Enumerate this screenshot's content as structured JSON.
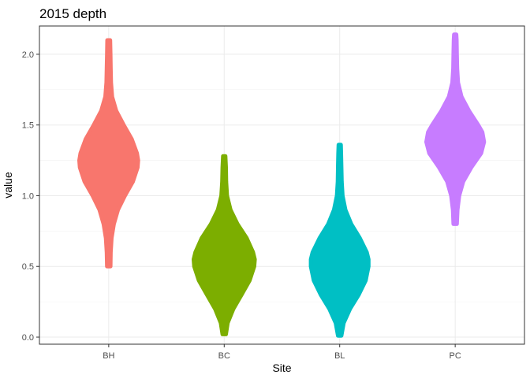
{
  "chart_data": {
    "type": "violin",
    "title": "2015 depth",
    "xlabel": "Site",
    "ylabel": "value",
    "categories": [
      "BH",
      "BC",
      "BL",
      "PC"
    ],
    "ylim": [
      -0.05,
      2.2
    ],
    "y_ticks": [
      0.0,
      0.5,
      1.0,
      1.5,
      2.0
    ],
    "y_tick_labels": [
      "0.0",
      "0.5",
      "1.0",
      "1.5",
      "2.0"
    ],
    "grid": true,
    "legend": "none",
    "series": [
      {
        "category": "BH",
        "color": "#F8766D",
        "min": 0.5,
        "max": 2.1,
        "profile": [
          [
            0.5,
            0.03
          ],
          [
            0.6,
            0.035
          ],
          [
            0.7,
            0.05
          ],
          [
            0.8,
            0.09
          ],
          [
            0.9,
            0.16
          ],
          [
            1.0,
            0.28
          ],
          [
            1.1,
            0.42
          ],
          [
            1.2,
            0.5
          ],
          [
            1.25,
            0.51
          ],
          [
            1.3,
            0.49
          ],
          [
            1.4,
            0.4
          ],
          [
            1.5,
            0.26
          ],
          [
            1.6,
            0.13
          ],
          [
            1.7,
            0.06
          ],
          [
            1.8,
            0.04
          ],
          [
            1.9,
            0.035
          ],
          [
            2.0,
            0.03
          ],
          [
            2.1,
            0.025
          ]
        ]
      },
      {
        "category": "BC",
        "color": "#7CAE00",
        "min": 0.02,
        "max": 1.28,
        "profile": [
          [
            0.02,
            0.03
          ],
          [
            0.1,
            0.06
          ],
          [
            0.2,
            0.16
          ],
          [
            0.3,
            0.3
          ],
          [
            0.4,
            0.44
          ],
          [
            0.5,
            0.52
          ],
          [
            0.55,
            0.53
          ],
          [
            0.6,
            0.5
          ],
          [
            0.7,
            0.39
          ],
          [
            0.8,
            0.23
          ],
          [
            0.9,
            0.11
          ],
          [
            1.0,
            0.05
          ],
          [
            1.1,
            0.035
          ],
          [
            1.2,
            0.03
          ],
          [
            1.28,
            0.02
          ]
        ]
      },
      {
        "category": "BL",
        "color": "#00BFC4",
        "min": 0.01,
        "max": 1.36,
        "profile": [
          [
            0.01,
            0.03
          ],
          [
            0.1,
            0.07
          ],
          [
            0.2,
            0.18
          ],
          [
            0.3,
            0.33
          ],
          [
            0.4,
            0.45
          ],
          [
            0.5,
            0.5
          ],
          [
            0.55,
            0.5
          ],
          [
            0.6,
            0.47
          ],
          [
            0.7,
            0.35
          ],
          [
            0.8,
            0.2
          ],
          [
            0.9,
            0.1
          ],
          [
            1.0,
            0.05
          ],
          [
            1.1,
            0.035
          ],
          [
            1.2,
            0.03
          ],
          [
            1.3,
            0.025
          ],
          [
            1.36,
            0.02
          ]
        ]
      },
      {
        "category": "PC",
        "color": "#C77CFF",
        "min": 0.8,
        "max": 2.14,
        "profile": [
          [
            0.8,
            0.03
          ],
          [
            0.9,
            0.04
          ],
          [
            1.0,
            0.07
          ],
          [
            1.1,
            0.14
          ],
          [
            1.2,
            0.28
          ],
          [
            1.3,
            0.45
          ],
          [
            1.38,
            0.5
          ],
          [
            1.45,
            0.47
          ],
          [
            1.5,
            0.4
          ],
          [
            1.6,
            0.24
          ],
          [
            1.7,
            0.11
          ],
          [
            1.8,
            0.05
          ],
          [
            1.9,
            0.035
          ],
          [
            2.0,
            0.03
          ],
          [
            2.1,
            0.025
          ],
          [
            2.14,
            0.02
          ]
        ]
      }
    ]
  }
}
